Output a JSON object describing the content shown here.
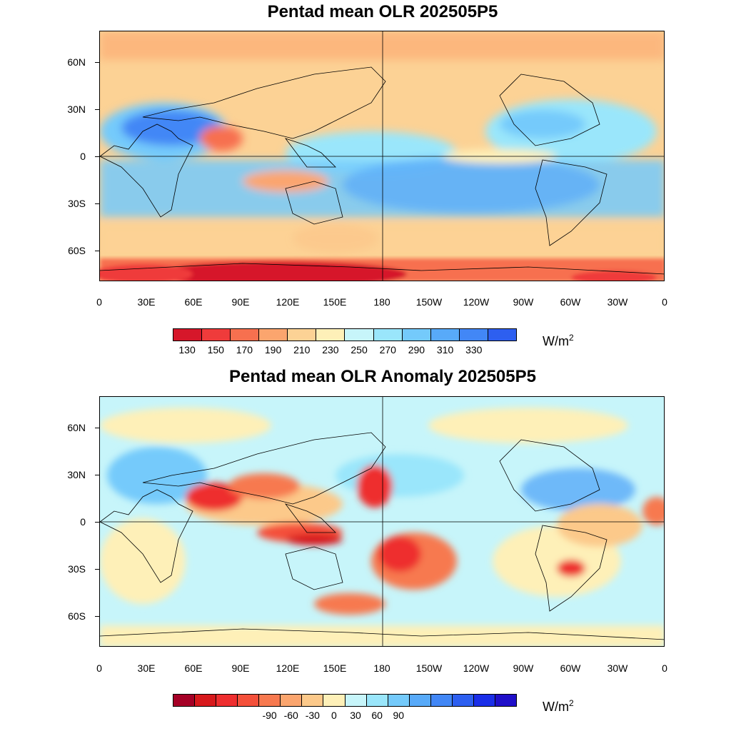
{
  "panels": [
    {
      "title": "Pentad mean OLR 202505P5",
      "y_labels": [
        "60N",
        "30N",
        "0",
        "30S",
        "60S"
      ],
      "x_labels": [
        "0",
        "30E",
        "60E",
        "90E",
        "120E",
        "150E",
        "180",
        "150W",
        "120W",
        "90W",
        "60W",
        "30W",
        "0"
      ],
      "colorbar": {
        "colors": [
          "#d6172a",
          "#ef3b3b",
          "#f7704f",
          "#fba56e",
          "#fcd295",
          "#fef0b8",
          "#c7f5fa",
          "#9ae6fb",
          "#74cafb",
          "#58aaf9",
          "#4287f6",
          "#2d5ff0"
        ],
        "labels": [
          "130",
          "150",
          "170",
          "190",
          "210",
          "230",
          "250",
          "270",
          "290",
          "310",
          "330"
        ],
        "unit": "W/m",
        "unit_sup": "2"
      }
    },
    {
      "title": "Pentad mean OLR Anomaly 202505P5",
      "y_labels": [
        "60N",
        "30N",
        "0",
        "30S",
        "60S"
      ],
      "x_labels": [
        "0",
        "30E",
        "60E",
        "90E",
        "120E",
        "150E",
        "180",
        "150W",
        "120W",
        "90W",
        "60W",
        "30W",
        "0"
      ],
      "colorbar": {
        "colors": [
          "#a50026",
          "#d7191c",
          "#ee2e2f",
          "#f4503a",
          "#f7794f",
          "#fba56e",
          "#fcc98a",
          "#fef0b8",
          "#c7f5fa",
          "#9ae6fb",
          "#74cafb",
          "#58aaf9",
          "#4287f6",
          "#2d5ff0",
          "#1a2ee8",
          "#1f0fc9"
        ],
        "labels": [
          "-90",
          "-60",
          "-30",
          "0",
          "30",
          "60",
          "90"
        ],
        "unit": "W/m",
        "unit_sup": "2"
      }
    }
  ]
}
